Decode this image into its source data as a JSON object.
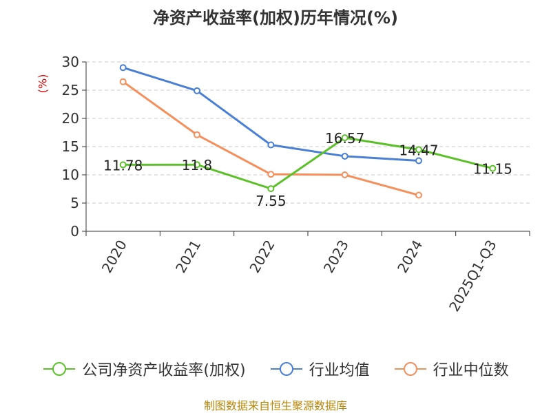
{
  "chart_data": {
    "type": "line",
    "title": "净资产收益率(加权)历年情况(%)",
    "ylabel": "(%)",
    "xlabel": "",
    "categories": [
      "2020",
      "2021",
      "2022",
      "2023",
      "2024",
      "2025Q1-Q3"
    ],
    "ylim": [
      0,
      30
    ],
    "yticks": [
      0,
      5,
      10,
      15,
      20,
      25,
      30
    ],
    "grid": true,
    "legend_position": "bottom",
    "series": [
      {
        "name": "公司净资产收益率(加权)",
        "color": "#5cc129",
        "show_labels": true,
        "values": [
          11.78,
          11.8,
          7.55,
          16.57,
          14.47,
          11.15
        ]
      },
      {
        "name": "行业均值",
        "color": "#4a7fd6",
        "show_labels": false,
        "values": [
          29.0,
          24.9,
          15.3,
          13.3,
          12.5,
          null
        ]
      },
      {
        "name": "行业中位数",
        "color": "#f58f5b",
        "show_labels": false,
        "values": [
          26.5,
          17.1,
          10.1,
          10.0,
          6.4,
          null
        ]
      }
    ],
    "source": "制图数据来自恒生聚源数据库"
  }
}
